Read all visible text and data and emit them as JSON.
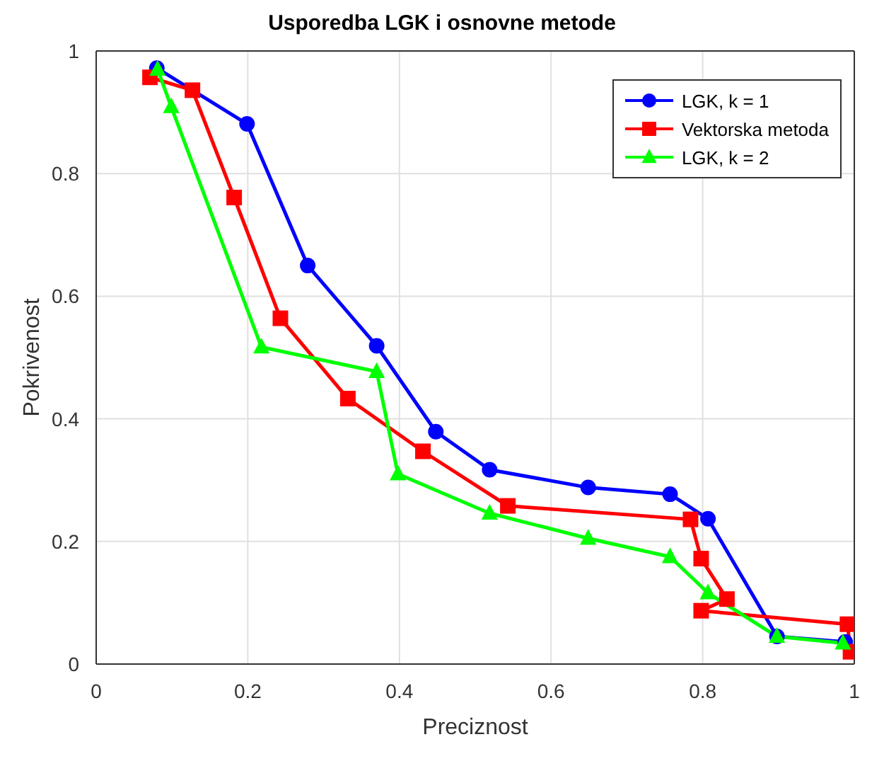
{
  "chart_data": {
    "type": "line",
    "title": "Usporedba LGK i osnovne metode",
    "xlabel": "Preciznost",
    "ylabel": "Pokrivenost",
    "xlim": [
      0,
      1
    ],
    "xticks": [
      0,
      0.2,
      0.4,
      0.6,
      0.8,
      1
    ],
    "ylim": [
      0,
      1
    ],
    "yticks": [
      0,
      0.2,
      0.4,
      0.6,
      0.8,
      1
    ],
    "grid": true,
    "legend": "top right",
    "line_style": "solid",
    "series": [
      {
        "name": "LGK, k = 1",
        "color": "#0000ff",
        "marker": "circle",
        "x": [
          0.08,
          0.199,
          0.279,
          0.37,
          0.448,
          0.519,
          0.649,
          0.757,
          0.807,
          0.898,
          0.988
        ],
        "values": [
          0.972,
          0.881,
          0.65,
          0.519,
          0.379,
          0.317,
          0.288,
          0.277,
          0.237,
          0.045,
          0.036
        ]
      },
      {
        "name": "Vektorska metoda",
        "color": "#ff0000",
        "marker": "square",
        "x": [
          0.071,
          0.127,
          0.182,
          0.243,
          0.332,
          0.431,
          0.543,
          0.784,
          0.798,
          0.832,
          0.798,
          0.991,
          0.995
        ],
        "values": [
          0.957,
          0.936,
          0.761,
          0.564,
          0.433,
          0.347,
          0.258,
          0.236,
          0.172,
          0.106,
          0.087,
          0.065,
          0.02
        ]
      },
      {
        "name": "LGK, k = 2",
        "color": "#00ff00",
        "marker": "triangle",
        "x": [
          0.081,
          0.099,
          0.218,
          0.37,
          0.398,
          0.519,
          0.649,
          0.757,
          0.807,
          0.898,
          0.985
        ],
        "values": [
          0.97,
          0.909,
          0.517,
          0.477,
          0.31,
          0.246,
          0.205,
          0.175,
          0.116,
          0.045,
          0.034
        ]
      }
    ]
  }
}
